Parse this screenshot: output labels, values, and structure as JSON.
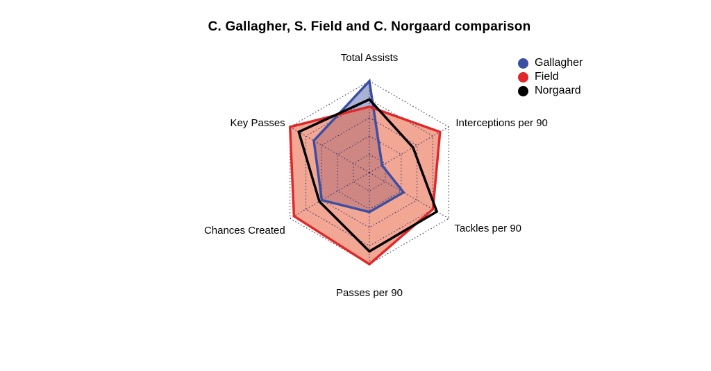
{
  "chart_data": {
    "type": "radar",
    "title": "C. Gallagher, S. Field and C. Norgaard comparison",
    "axes": [
      "Total Assists",
      "Interceptions per 90",
      "Tackles per 90",
      "Passes per 90",
      "Chances Created",
      "Key Passes"
    ],
    "scale": [
      0,
      1
    ],
    "grid_levels": 5,
    "legend_position": "top-right",
    "series": [
      {
        "name": "Gallagher",
        "color": "#3a4fa3",
        "fill": "#6f7fb8",
        "values": [
          1.0,
          0.16,
          0.43,
          0.43,
          0.6,
          0.7
        ]
      },
      {
        "name": "Field",
        "color": "#e02828",
        "fill": "#ea6a4d",
        "values": [
          0.72,
          0.89,
          0.8,
          1.0,
          0.95,
          1.0
        ]
      },
      {
        "name": "Norgaard",
        "color": "#000000",
        "fill": "none",
        "values": [
          0.8,
          0.55,
          0.85,
          0.86,
          0.63,
          0.89
        ]
      }
    ]
  }
}
